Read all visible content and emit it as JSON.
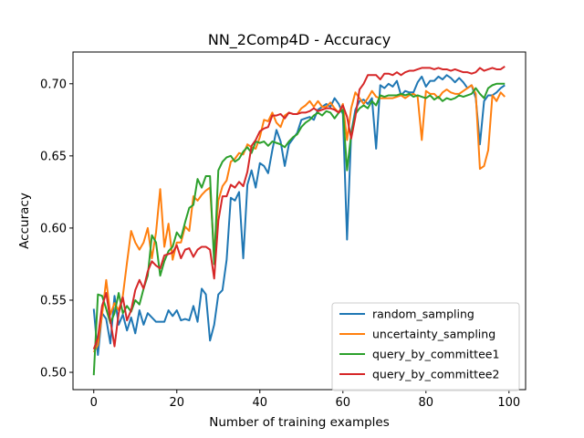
{
  "chart_data": {
    "type": "line",
    "title": "NN_2Comp4D - Accuracy",
    "xlabel": "Number of training examples",
    "ylabel": "Accuracy",
    "xlim": [
      -5,
      104
    ],
    "ylim": [
      0.488,
      0.722
    ],
    "xticks": [
      0,
      20,
      40,
      60,
      80,
      100
    ],
    "xtick_labels": [
      "0",
      "20",
      "40",
      "60",
      "80",
      "100"
    ],
    "yticks": [
      0.5,
      0.55,
      0.6,
      0.65,
      0.7
    ],
    "ytick_labels": [
      "0.50",
      "0.55",
      "0.60",
      "0.65",
      "0.70"
    ],
    "legend_position": "lower right",
    "grid": false,
    "series": [
      {
        "name": "random_sampling",
        "color": "#1f77b4",
        "x": [
          0,
          1,
          2,
          3,
          4,
          5,
          6,
          7,
          8,
          9,
          10,
          11,
          12,
          13,
          14,
          15,
          16,
          17,
          18,
          19,
          20,
          21,
          22,
          23,
          24,
          25,
          26,
          27,
          28,
          29,
          30,
          31,
          32,
          33,
          34,
          35,
          36,
          37,
          38,
          39,
          40,
          41,
          42,
          43,
          44,
          45,
          46,
          47,
          48,
          49,
          50,
          51,
          52,
          53,
          54,
          55,
          56,
          57,
          58,
          59,
          60,
          61,
          62,
          63,
          64,
          65,
          66,
          67,
          68,
          69,
          70,
          71,
          72,
          73,
          74,
          75,
          76,
          77,
          78,
          79,
          80,
          81,
          82,
          83,
          84,
          85,
          86,
          87,
          88,
          89,
          90,
          91,
          92,
          93,
          94,
          95,
          96,
          97,
          98,
          99
        ],
        "values": [
          0.544,
          0.512,
          0.541,
          0.537,
          0.52,
          0.553,
          0.533,
          0.54,
          0.529,
          0.538,
          0.527,
          0.543,
          0.533,
          0.541,
          0.538,
          0.535,
          0.535,
          0.535,
          0.543,
          0.539,
          0.543,
          0.536,
          0.537,
          0.536,
          0.546,
          0.535,
          0.558,
          0.554,
          0.522,
          0.533,
          0.554,
          0.557,
          0.578,
          0.621,
          0.619,
          0.625,
          0.579,
          0.63,
          0.64,
          0.628,
          0.645,
          0.643,
          0.638,
          0.654,
          0.668,
          0.66,
          0.643,
          0.658,
          0.662,
          0.666,
          0.675,
          0.676,
          0.677,
          0.675,
          0.682,
          0.684,
          0.686,
          0.684,
          0.69,
          0.686,
          0.679,
          0.592,
          0.666,
          0.682,
          0.688,
          0.689,
          0.686,
          0.69,
          0.655,
          0.699,
          0.697,
          0.7,
          0.698,
          0.702,
          0.692,
          0.695,
          0.694,
          0.694,
          0.701,
          0.705,
          0.698,
          0.702,
          0.702,
          0.705,
          0.703,
          0.706,
          0.704,
          0.701,
          0.704,
          0.701,
          0.697,
          0.699,
          0.69,
          0.658,
          0.688,
          0.692,
          0.692,
          0.694,
          0.697,
          0.699
        ]
      },
      {
        "name": "uncertainty_sampling",
        "color": "#ff7f0e",
        "x": [
          0,
          1,
          2,
          3,
          4,
          5,
          6,
          7,
          8,
          9,
          10,
          11,
          12,
          13,
          14,
          15,
          16,
          17,
          18,
          19,
          20,
          21,
          22,
          23,
          24,
          25,
          26,
          27,
          28,
          29,
          30,
          31,
          32,
          33,
          34,
          35,
          36,
          37,
          38,
          39,
          40,
          41,
          42,
          43,
          44,
          45,
          46,
          47,
          48,
          49,
          50,
          51,
          52,
          53,
          54,
          55,
          56,
          57,
          58,
          59,
          60,
          61,
          62,
          63,
          64,
          65,
          66,
          67,
          68,
          69,
          70,
          71,
          72,
          73,
          74,
          75,
          76,
          77,
          78,
          79,
          80,
          81,
          82,
          83,
          84,
          85,
          86,
          87,
          88,
          89,
          90,
          91,
          92,
          93,
          94,
          95,
          96,
          97,
          98,
          99
        ],
        "values": [
          0.514,
          0.519,
          0.54,
          0.564,
          0.54,
          0.548,
          0.543,
          0.553,
          0.576,
          0.598,
          0.59,
          0.585,
          0.59,
          0.6,
          0.579,
          0.597,
          0.627,
          0.587,
          0.603,
          0.578,
          0.59,
          0.59,
          0.601,
          0.598,
          0.622,
          0.619,
          0.623,
          0.626,
          0.628,
          0.582,
          0.619,
          0.629,
          0.633,
          0.646,
          0.648,
          0.652,
          0.651,
          0.658,
          0.656,
          0.655,
          0.663,
          0.675,
          0.674,
          0.68,
          0.673,
          0.67,
          0.678,
          0.68,
          0.679,
          0.679,
          0.683,
          0.685,
          0.688,
          0.684,
          0.688,
          0.684,
          0.684,
          0.687,
          0.683,
          0.68,
          0.686,
          0.661,
          0.683,
          0.694,
          0.69,
          0.686,
          0.69,
          0.695,
          0.691,
          0.69,
          0.69,
          0.69,
          0.69,
          0.691,
          0.692,
          0.69,
          0.692,
          0.693,
          0.691,
          0.661,
          0.695,
          0.693,
          0.693,
          0.69,
          0.694,
          0.696,
          0.694,
          0.693,
          0.693,
          0.695,
          0.697,
          0.699,
          0.693,
          0.641,
          0.643,
          0.654,
          0.692,
          0.688,
          0.694,
          0.691
        ]
      },
      {
        "name": "query_by_committee1",
        "color": "#2ca02c",
        "x": [
          0,
          1,
          2,
          3,
          4,
          5,
          6,
          7,
          8,
          9,
          10,
          11,
          12,
          13,
          14,
          15,
          16,
          17,
          18,
          19,
          20,
          21,
          22,
          23,
          24,
          25,
          26,
          27,
          28,
          29,
          30,
          31,
          32,
          33,
          34,
          35,
          36,
          37,
          38,
          39,
          40,
          41,
          42,
          43,
          44,
          45,
          46,
          47,
          48,
          49,
          50,
          51,
          52,
          53,
          54,
          55,
          56,
          57,
          58,
          59,
          60,
          61,
          62,
          63,
          64,
          65,
          66,
          67,
          68,
          69,
          70,
          71,
          72,
          73,
          74,
          75,
          76,
          77,
          78,
          79,
          80,
          81,
          82,
          83,
          84,
          85,
          86,
          87,
          88,
          89,
          90,
          91,
          92,
          93,
          94,
          95,
          96,
          97,
          98,
          99
        ],
        "values": [
          0.498,
          0.554,
          0.553,
          0.544,
          0.534,
          0.541,
          0.555,
          0.541,
          0.546,
          0.542,
          0.55,
          0.547,
          0.558,
          0.567,
          0.595,
          0.59,
          0.567,
          0.577,
          0.584,
          0.587,
          0.597,
          0.593,
          0.604,
          0.614,
          0.616,
          0.634,
          0.628,
          0.636,
          0.636,
          0.575,
          0.64,
          0.646,
          0.649,
          0.65,
          0.646,
          0.648,
          0.653,
          0.656,
          0.652,
          0.66,
          0.659,
          0.66,
          0.657,
          0.66,
          0.659,
          0.658,
          0.656,
          0.66,
          0.663,
          0.665,
          0.67,
          0.673,
          0.675,
          0.678,
          0.68,
          0.678,
          0.681,
          0.68,
          0.676,
          0.68,
          0.682,
          0.64,
          0.665,
          0.679,
          0.683,
          0.685,
          0.683,
          0.688,
          0.685,
          0.692,
          0.691,
          0.692,
          0.692,
          0.692,
          0.693,
          0.692,
          0.693,
          0.691,
          0.692,
          0.691,
          0.69,
          0.692,
          0.689,
          0.691,
          0.688,
          0.69,
          0.689,
          0.69,
          0.692,
          0.691,
          0.692,
          0.693,
          0.697,
          0.693,
          0.69,
          0.697,
          0.699,
          0.7,
          0.7,
          0.7
        ]
      },
      {
        "name": "query_by_committee2",
        "color": "#d62728",
        "x": [
          0,
          1,
          2,
          3,
          4,
          5,
          6,
          7,
          8,
          9,
          10,
          11,
          12,
          13,
          14,
          15,
          16,
          17,
          18,
          19,
          20,
          21,
          22,
          23,
          24,
          25,
          26,
          27,
          28,
          29,
          30,
          31,
          32,
          33,
          34,
          35,
          36,
          37,
          38,
          39,
          40,
          41,
          42,
          43,
          44,
          45,
          46,
          47,
          48,
          49,
          50,
          51,
          52,
          53,
          54,
          55,
          56,
          57,
          58,
          59,
          60,
          61,
          62,
          63,
          64,
          65,
          66,
          67,
          68,
          69,
          70,
          71,
          72,
          73,
          74,
          75,
          76,
          77,
          78,
          79,
          80,
          81,
          82,
          83,
          84,
          85,
          86,
          87,
          88,
          89,
          90,
          91,
          92,
          93,
          94,
          95,
          96,
          97,
          98,
          99
        ],
        "values": [
          0.516,
          0.524,
          0.546,
          0.555,
          0.536,
          0.518,
          0.541,
          0.552,
          0.536,
          0.543,
          0.557,
          0.564,
          0.558,
          0.57,
          0.577,
          0.574,
          0.572,
          0.581,
          0.582,
          0.583,
          0.588,
          0.579,
          0.585,
          0.586,
          0.58,
          0.585,
          0.587,
          0.587,
          0.585,
          0.565,
          0.605,
          0.622,
          0.622,
          0.63,
          0.628,
          0.632,
          0.629,
          0.639,
          0.657,
          0.661,
          0.667,
          0.669,
          0.67,
          0.678,
          0.678,
          0.679,
          0.676,
          0.68,
          0.679,
          0.679,
          0.68,
          0.68,
          0.681,
          0.683,
          0.681,
          0.682,
          0.683,
          0.683,
          0.682,
          0.68,
          0.685,
          0.677,
          0.662,
          0.677,
          0.696,
          0.7,
          0.706,
          0.706,
          0.706,
          0.703,
          0.707,
          0.707,
          0.706,
          0.708,
          0.706,
          0.708,
          0.709,
          0.709,
          0.71,
          0.711,
          0.711,
          0.711,
          0.71,
          0.711,
          0.71,
          0.71,
          0.709,
          0.71,
          0.709,
          0.708,
          0.708,
          0.707,
          0.708,
          0.711,
          0.709,
          0.71,
          0.711,
          0.71,
          0.71,
          0.712
        ]
      }
    ]
  }
}
